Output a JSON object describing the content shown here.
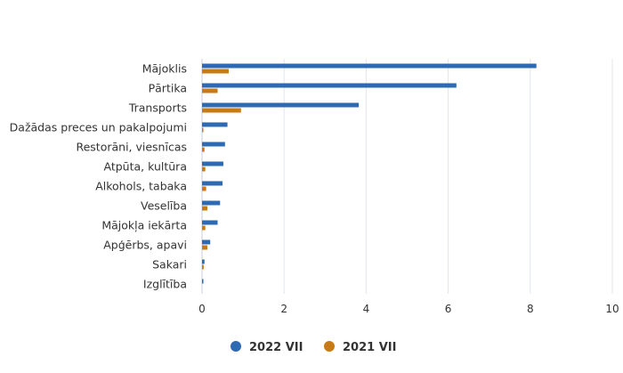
{
  "chart_data": {
    "type": "bar",
    "orientation": "horizontal",
    "categories": [
      "Mājoklis",
      "Pārtika",
      "Transports",
      "Dažādas preces un pakalpojumi",
      "Restorāni, viesnīcas",
      "Atpūta, kultūra",
      "Alkohols, tabaka",
      "Veselība",
      "Mājokļa iekārta",
      "Apģērbs, apavi",
      "Sakari",
      "Izglītība"
    ],
    "series": [
      {
        "name": "2022 VII",
        "color": "#2e6ab3",
        "values": [
          8.15,
          6.2,
          3.82,
          0.62,
          0.56,
          0.52,
          0.5,
          0.44,
          0.38,
          0.2,
          0.06,
          0.01
        ]
      },
      {
        "name": "2021 VII",
        "color": "#c87b14",
        "values": [
          0.65,
          0.38,
          0.95,
          0.01,
          0.06,
          0.08,
          0.1,
          0.13,
          0.08,
          0.13,
          0.04,
          0.0
        ]
      }
    ],
    "xlim": [
      0,
      10
    ],
    "xticks": [
      "0",
      "2",
      "4",
      "6",
      "8",
      "10"
    ],
    "grid": true,
    "legend_position": "bottom-center"
  }
}
